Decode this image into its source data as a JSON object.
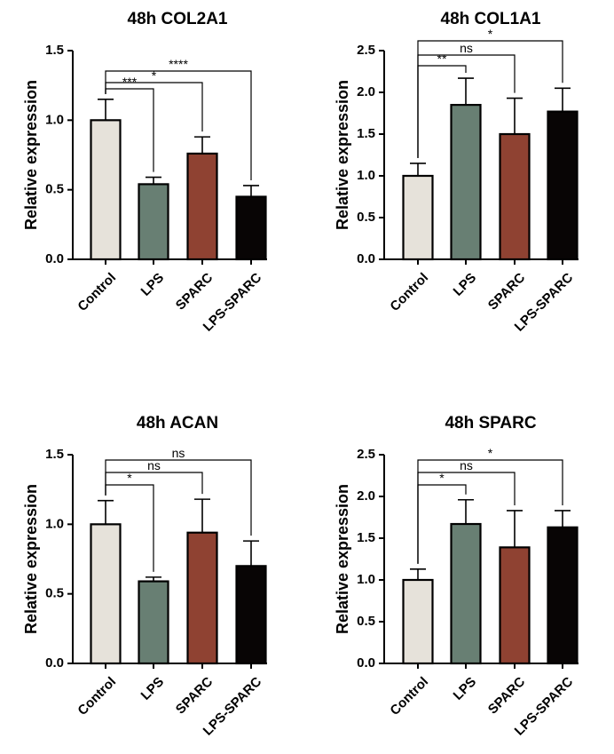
{
  "chart_data": [
    {
      "type": "bar",
      "title": "48h COL2A1",
      "xlabel": "",
      "ylabel": "Relative expression",
      "categories": [
        "Control",
        "LPS",
        "SPARC",
        "LPS-SPARC"
      ],
      "values": [
        1.0,
        0.54,
        0.76,
        0.45
      ],
      "errors": [
        0.15,
        0.05,
        0.12,
        0.08
      ],
      "colors": [
        "#e6e2da",
        "#687f73",
        "#8f4232",
        "#080505"
      ],
      "ylim": [
        0,
        1.5
      ],
      "yticks": [
        "0.0",
        "0.5",
        "1.0",
        "1.5"
      ],
      "comparisons": [
        {
          "from": "Control",
          "to": "LPS",
          "label": "***"
        },
        {
          "from": "Control",
          "to": "SPARC",
          "label": "*"
        },
        {
          "from": "Control",
          "to": "LPS-SPARC",
          "label": "****"
        }
      ]
    },
    {
      "type": "bar",
      "title": "48h COL1A1",
      "xlabel": "",
      "ylabel": "Relative expression",
      "categories": [
        "Control",
        "LPS",
        "SPARC",
        "LPS-SPARC"
      ],
      "values": [
        1.0,
        1.85,
        1.5,
        1.77
      ],
      "errors": [
        0.15,
        0.32,
        0.43,
        0.28
      ],
      "colors": [
        "#e6e2da",
        "#687f73",
        "#8f4232",
        "#080505"
      ],
      "ylim": [
        0,
        2.5
      ],
      "yticks": [
        "0.0",
        "0.5",
        "1.0",
        "1.5",
        "2.0",
        "2.5"
      ],
      "comparisons": [
        {
          "from": "Control",
          "to": "LPS",
          "label": "**"
        },
        {
          "from": "Control",
          "to": "SPARC",
          "label": "ns"
        },
        {
          "from": "Control",
          "to": "LPS-SPARC",
          "label": "*"
        }
      ]
    },
    {
      "type": "bar",
      "title": "48h ACAN",
      "xlabel": "",
      "ylabel": "Relative expression",
      "categories": [
        "Control",
        "LPS",
        "SPARC",
        "LPS-SPARC"
      ],
      "values": [
        1.0,
        0.59,
        0.94,
        0.7
      ],
      "errors": [
        0.17,
        0.03,
        0.24,
        0.18
      ],
      "colors": [
        "#e6e2da",
        "#687f73",
        "#8f4232",
        "#080505"
      ],
      "ylim": [
        0,
        1.5
      ],
      "yticks": [
        "0.0",
        "0.5",
        "1.0",
        "1.5"
      ],
      "comparisons": [
        {
          "from": "Control",
          "to": "LPS",
          "label": "*"
        },
        {
          "from": "Control",
          "to": "SPARC",
          "label": "ns"
        },
        {
          "from": "Control",
          "to": "LPS-SPARC",
          "label": "ns"
        }
      ]
    },
    {
      "type": "bar",
      "title": "48h SPARC",
      "xlabel": "",
      "ylabel": "Relative expression",
      "categories": [
        "Control",
        "LPS",
        "SPARC",
        "LPS-SPARC"
      ],
      "values": [
        1.0,
        1.67,
        1.39,
        1.63
      ],
      "errors": [
        0.13,
        0.29,
        0.44,
        0.2
      ],
      "colors": [
        "#e6e2da",
        "#687f73",
        "#8f4232",
        "#080505"
      ],
      "ylim": [
        0,
        2.5
      ],
      "yticks": [
        "0.0",
        "0.5",
        "1.0",
        "1.5",
        "2.0",
        "2.5"
      ],
      "comparisons": [
        {
          "from": "Control",
          "to": "LPS",
          "label": "*"
        },
        {
          "from": "Control",
          "to": "SPARC",
          "label": "ns"
        },
        {
          "from": "Control",
          "to": "LPS-SPARC",
          "label": "*"
        }
      ]
    }
  ]
}
